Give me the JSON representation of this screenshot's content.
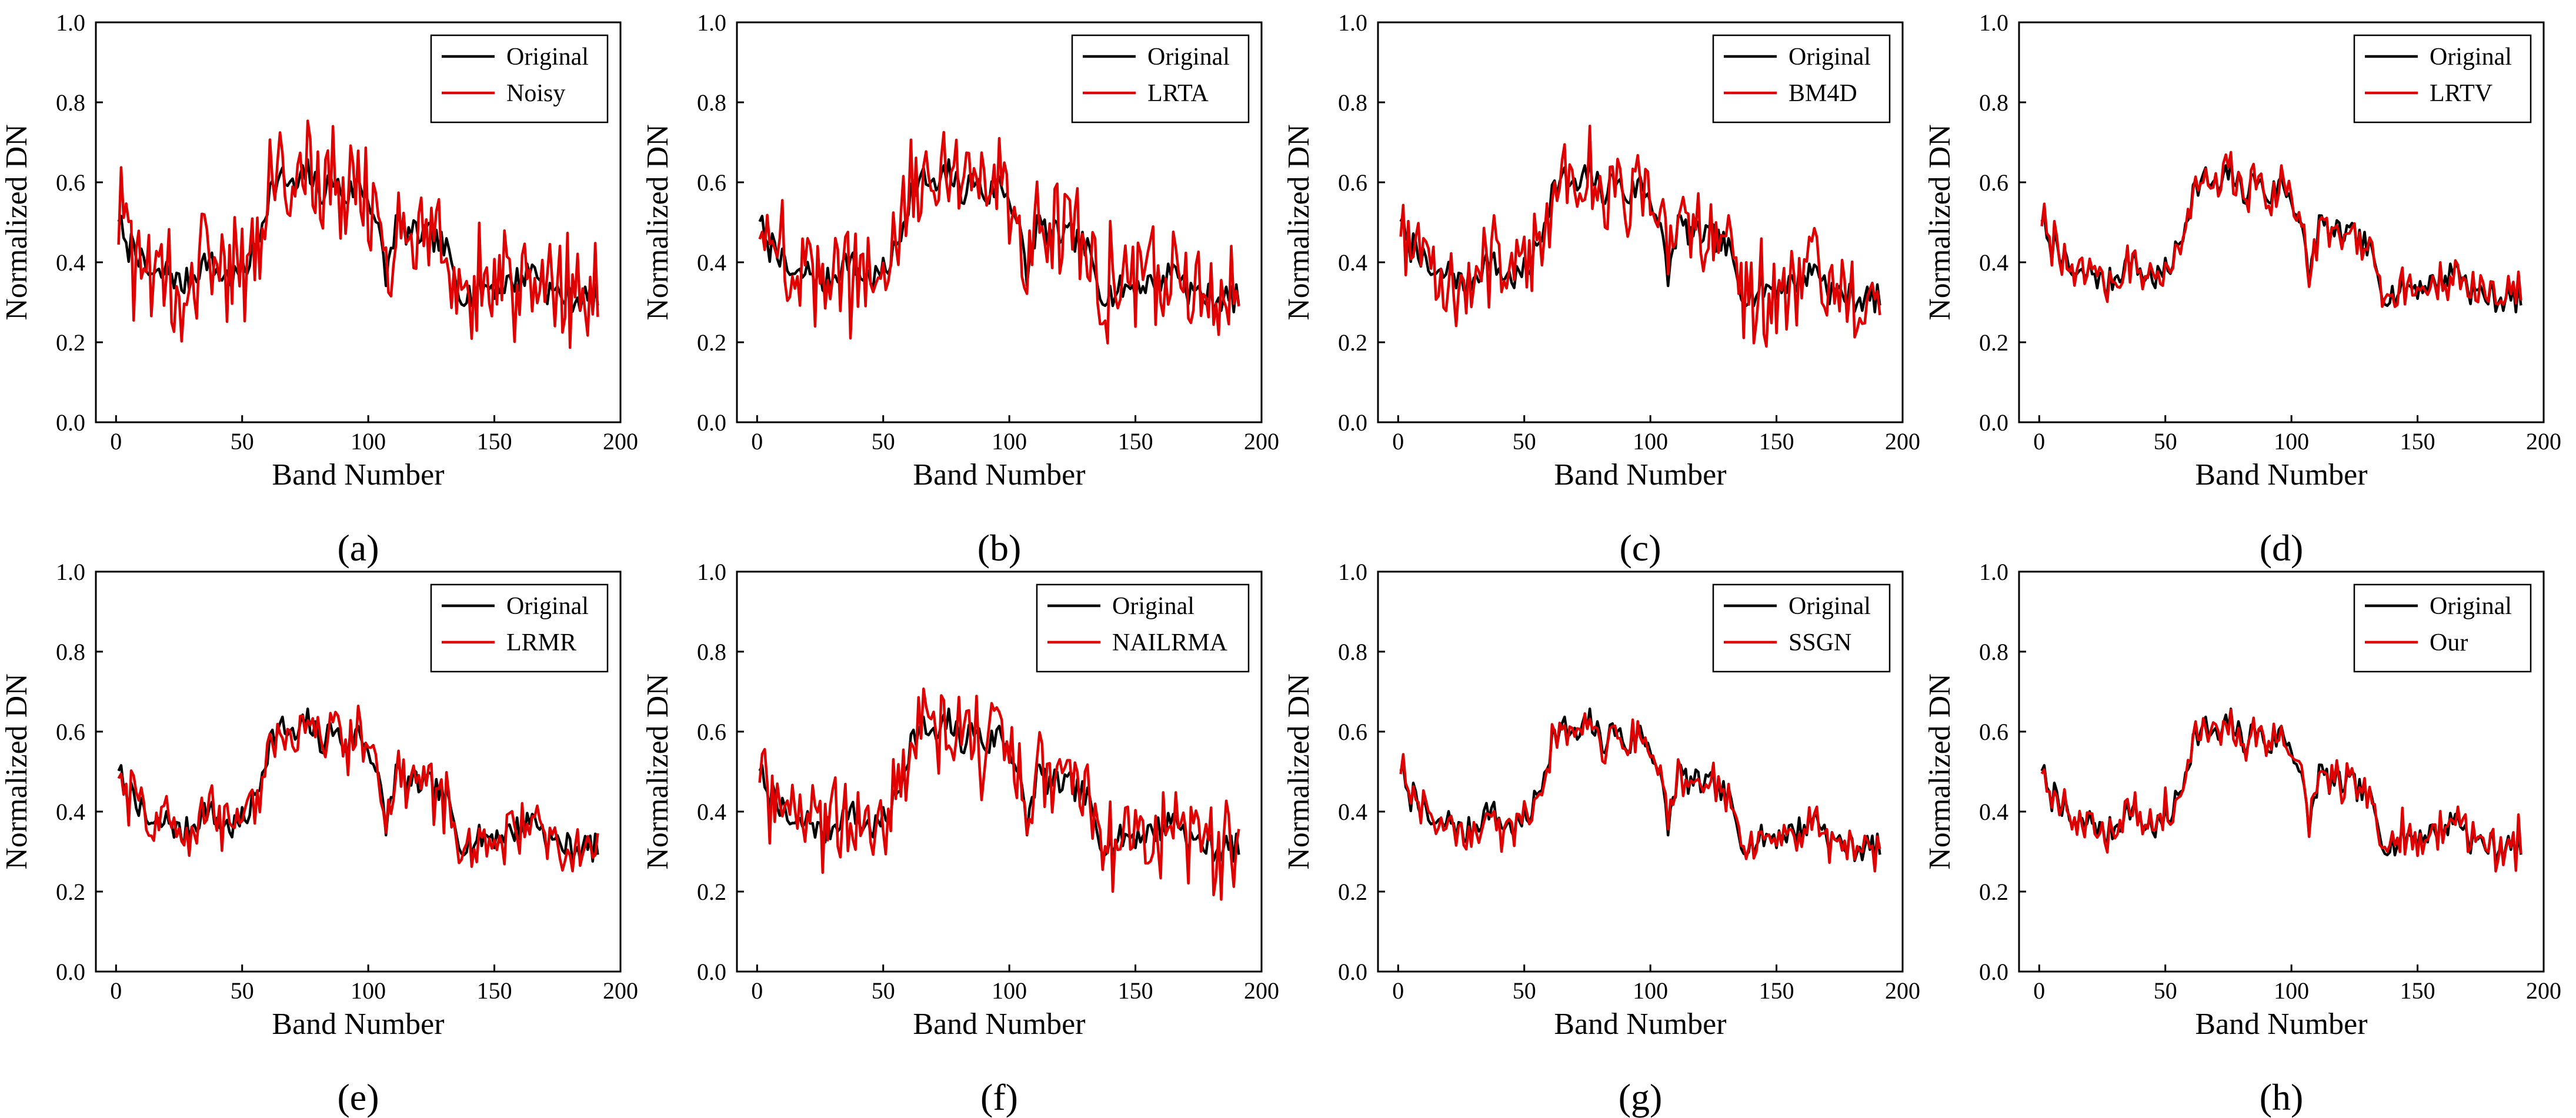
{
  "figure": {
    "description_label": "Spectral signature comparison panels"
  },
  "chart_data": [
    {
      "type": "line",
      "panel_label": "(a)",
      "xlabel": "Band Number",
      "ylabel": "Normalized DN",
      "xlim": [
        -8,
        200
      ],
      "ylim": [
        0.0,
        1.0
      ],
      "xticks": [
        "0",
        "50",
        "100",
        "150",
        "200"
      ],
      "yticks": [
        "0.0",
        "0.2",
        "0.4",
        "0.6",
        "0.8",
        "1.0"
      ],
      "legend": [
        "Original",
        "Noisy"
      ],
      "legend_position": "top-right",
      "noise_level": 0.08,
      "series": [
        {
          "name": "Original",
          "color": "#000000"
        },
        {
          "name": "Noisy",
          "color": "#e00000"
        }
      ]
    },
    {
      "type": "line",
      "panel_label": "(b)",
      "xlabel": "Band Number",
      "ylabel": "Normalized DN",
      "xlim": [
        -8,
        200
      ],
      "ylim": [
        0.0,
        1.0
      ],
      "xticks": [
        "0",
        "50",
        "100",
        "150",
        "200"
      ],
      "yticks": [
        "0.0",
        "0.2",
        "0.4",
        "0.6",
        "0.8",
        "1.0"
      ],
      "legend": [
        "Original",
        "LRTA"
      ],
      "legend_position": "top-right",
      "noise_level": 0.065,
      "series": [
        {
          "name": "Original",
          "color": "#000000"
        },
        {
          "name": "LRTA",
          "color": "#e00000"
        }
      ]
    },
    {
      "type": "line",
      "panel_label": "(c)",
      "xlabel": "Band Number",
      "ylabel": "Normalized DN",
      "xlim": [
        -8,
        200
      ],
      "ylim": [
        0.0,
        1.0
      ],
      "xticks": [
        "0",
        "50",
        "100",
        "150",
        "200"
      ],
      "yticks": [
        "0.0",
        "0.2",
        "0.4",
        "0.6",
        "0.8",
        "1.0"
      ],
      "legend": [
        "Original",
        "BM4D"
      ],
      "legend_position": "top-right",
      "noise_level": 0.06,
      "series": [
        {
          "name": "Original",
          "color": "#000000"
        },
        {
          "name": "BM4D",
          "color": "#e00000"
        }
      ]
    },
    {
      "type": "line",
      "panel_label": "(d)",
      "xlabel": "Band Number",
      "ylabel": "Normalized DN",
      "xlim": [
        -8,
        200
      ],
      "ylim": [
        0.0,
        1.0
      ],
      "xticks": [
        "0",
        "50",
        "100",
        "150",
        "200"
      ],
      "yticks": [
        "0.0",
        "0.2",
        "0.4",
        "0.6",
        "0.8",
        "1.0"
      ],
      "legend": [
        "Original",
        "LRTV"
      ],
      "legend_position": "top-right",
      "noise_level": 0.02,
      "series": [
        {
          "name": "Original",
          "color": "#000000"
        },
        {
          "name": "LRTV",
          "color": "#e00000"
        }
      ]
    },
    {
      "type": "line",
      "panel_label": "(e)",
      "xlabel": "Band Number",
      "ylabel": "Normalized DN",
      "xlim": [
        -8,
        200
      ],
      "ylim": [
        0.0,
        1.0
      ],
      "xticks": [
        "0",
        "50",
        "100",
        "150",
        "200"
      ],
      "yticks": [
        "0.0",
        "0.2",
        "0.4",
        "0.6",
        "0.8",
        "1.0"
      ],
      "legend": [
        "Original",
        "LRMR"
      ],
      "legend_position": "top-right",
      "noise_level": 0.035,
      "series": [
        {
          "name": "Original",
          "color": "#000000"
        },
        {
          "name": "LRMR",
          "color": "#e00000"
        }
      ]
    },
    {
      "type": "line",
      "panel_label": "(f)",
      "xlabel": "Band Number",
      "ylabel": "Normalized DN",
      "xlim": [
        -8,
        200
      ],
      "ylim": [
        0.0,
        1.0
      ],
      "xticks": [
        "0",
        "50",
        "100",
        "150",
        "200"
      ],
      "yticks": [
        "0.0",
        "0.2",
        "0.4",
        "0.6",
        "0.8",
        "1.0"
      ],
      "legend": [
        "Original",
        "NAILRMA"
      ],
      "legend_position": "top-right",
      "noise_level": 0.06,
      "series": [
        {
          "name": "Original",
          "color": "#000000"
        },
        {
          "name": "NAILRMA",
          "color": "#e00000"
        }
      ]
    },
    {
      "type": "line",
      "panel_label": "(g)",
      "xlabel": "Band Number",
      "ylabel": "Normalized DN",
      "xlim": [
        -8,
        200
      ],
      "ylim": [
        0.0,
        1.0
      ],
      "xticks": [
        "0",
        "50",
        "100",
        "150",
        "200"
      ],
      "yticks": [
        "0.0",
        "0.2",
        "0.4",
        "0.6",
        "0.8",
        "1.0"
      ],
      "legend": [
        "Original",
        "SSGN"
      ],
      "legend_position": "top-right",
      "noise_level": 0.018,
      "series": [
        {
          "name": "Original",
          "color": "#000000"
        },
        {
          "name": "SSGN",
          "color": "#e00000"
        }
      ]
    },
    {
      "type": "line",
      "panel_label": "(h)",
      "xlabel": "Band Number",
      "ylabel": "Normalized DN",
      "xlim": [
        -8,
        200
      ],
      "ylim": [
        0.0,
        1.0
      ],
      "xticks": [
        "0",
        "50",
        "100",
        "150",
        "200"
      ],
      "yticks": [
        "0.0",
        "0.2",
        "0.4",
        "0.6",
        "0.8",
        "1.0"
      ],
      "legend": [
        "Original",
        "Our"
      ],
      "legend_position": "top-right",
      "noise_level": 0.018,
      "series": [
        {
          "name": "Original",
          "color": "#000000"
        },
        {
          "name": "Our",
          "color": "#e00000"
        }
      ]
    }
  ],
  "original_spectrum": {
    "bands": 191,
    "anchors": [
      [
        0,
        0.52
      ],
      [
        3,
        0.42
      ],
      [
        6,
        0.46
      ],
      [
        10,
        0.38
      ],
      [
        15,
        0.36
      ],
      [
        20,
        0.38
      ],
      [
        25,
        0.34
      ],
      [
        30,
        0.37
      ],
      [
        35,
        0.41
      ],
      [
        40,
        0.37
      ],
      [
        45,
        0.36
      ],
      [
        50,
        0.38
      ],
      [
        55,
        0.45
      ],
      [
        60,
        0.58
      ],
      [
        65,
        0.61
      ],
      [
        70,
        0.58
      ],
      [
        75,
        0.63
      ],
      [
        80,
        0.57
      ],
      [
        85,
        0.61
      ],
      [
        90,
        0.56
      ],
      [
        95,
        0.6
      ],
      [
        100,
        0.55
      ],
      [
        103,
        0.48
      ],
      [
        106,
        0.36
      ],
      [
        110,
        0.5
      ],
      [
        115,
        0.47
      ],
      [
        120,
        0.47
      ],
      [
        125,
        0.46
      ],
      [
        130,
        0.43
      ],
      [
        135,
        0.33
      ],
      [
        140,
        0.32
      ],
      [
        145,
        0.34
      ],
      [
        150,
        0.34
      ],
      [
        155,
        0.35
      ],
      [
        160,
        0.36
      ],
      [
        165,
        0.39
      ],
      [
        170,
        0.33
      ],
      [
        175,
        0.32
      ],
      [
        180,
        0.31
      ],
      [
        185,
        0.31
      ],
      [
        190,
        0.31
      ]
    ]
  }
}
